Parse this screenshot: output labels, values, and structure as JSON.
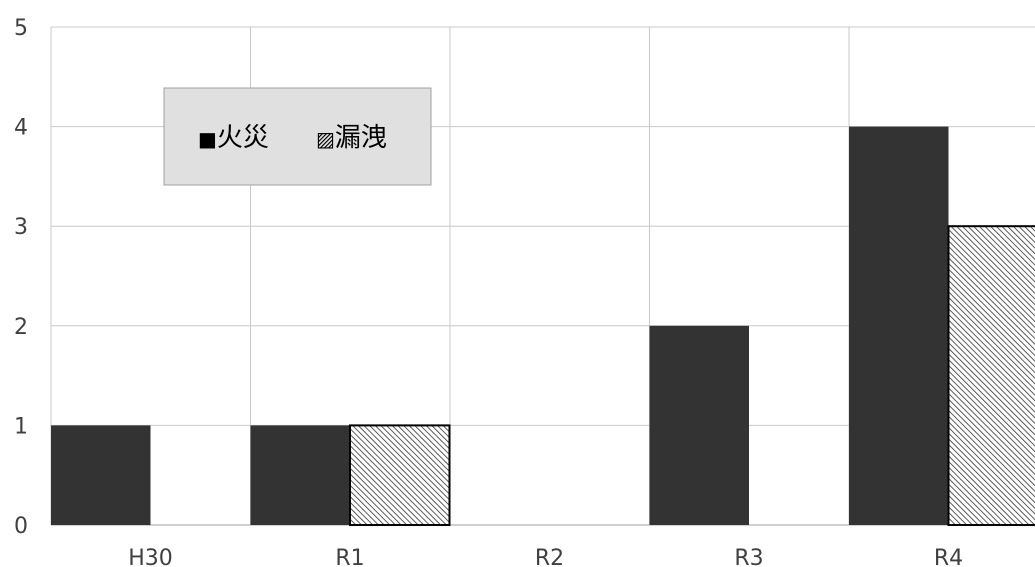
{
  "chart_data": {
    "type": "bar",
    "categories": [
      "H30",
      "R1",
      "R2",
      "R3",
      "R4"
    ],
    "series": [
      {
        "name": "火災",
        "values": [
          1,
          1,
          0,
          2,
          4
        ],
        "color": "#333333",
        "pattern": "solid"
      },
      {
        "name": "漏洩",
        "values": [
          0,
          1,
          0,
          0,
          3
        ],
        "color": "#333333",
        "pattern": "diagonal-hatch"
      }
    ],
    "ylim": [
      0,
      5
    ],
    "yticks": [
      "0",
      "1",
      "2",
      "3",
      "4",
      "5"
    ],
    "grid": true,
    "legend": {
      "placement": "top-left-inside",
      "markers": [
        "■",
        "▨"
      ]
    }
  }
}
